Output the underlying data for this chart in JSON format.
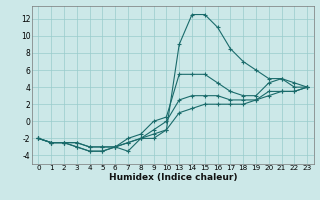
{
  "xlabel": "Humidex (Indice chaleur)",
  "bg_color": "#cce8e8",
  "grid_color": "#99cccc",
  "line_color": "#1a6b6b",
  "ylim": [
    -5,
    13.5
  ],
  "x_tick_labels": [
    "0",
    "1",
    "2",
    "3",
    "4",
    "5",
    "6",
    "7",
    "8",
    "9",
    "10",
    "13",
    "14",
    "15",
    "16",
    "17",
    "18",
    "19",
    "20",
    "21",
    "22",
    "23"
  ],
  "y_ticks": [
    -4,
    -2,
    0,
    2,
    4,
    6,
    8,
    10,
    12
  ],
  "line1_y": [
    -2,
    -2.5,
    -2.5,
    -3,
    -3.5,
    -3.5,
    -3,
    -3.5,
    -2,
    -2,
    -1,
    9,
    12.5,
    12.5,
    11,
    8.5,
    7,
    6,
    5,
    5,
    4.5,
    4
  ],
  "line2_y": [
    -2,
    -2.5,
    -2.5,
    -3,
    -3.5,
    -3.5,
    -3,
    -2,
    -1.5,
    0,
    0.5,
    5.5,
    5.5,
    5.5,
    4.5,
    3.5,
    3,
    3,
    4.5,
    5,
    4,
    4
  ],
  "line3_y": [
    -2,
    -2.5,
    -2.5,
    -2.5,
    -3,
    -3,
    -3,
    -2.5,
    -2,
    -1,
    0,
    2.5,
    3,
    3,
    3,
    2.5,
    2.5,
    2.5,
    3.5,
    3.5,
    3.5,
    4
  ],
  "line4_y": [
    -2,
    -2.5,
    -2.5,
    -2.5,
    -3,
    -3,
    -3,
    -2.5,
    -2,
    -1.5,
    -1,
    1,
    1.5,
    2,
    2,
    2,
    2,
    2.5,
    3,
    3.5,
    3.5,
    4
  ]
}
